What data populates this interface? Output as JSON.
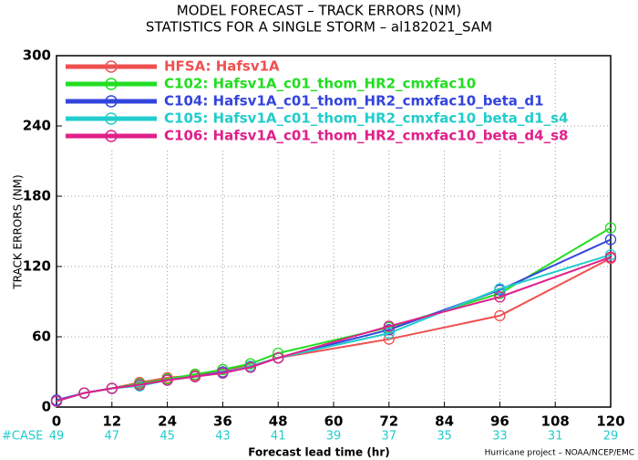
{
  "chart_data": {
    "type": "line",
    "title": "MODEL FORECAST – TRACK ERRORS (NM)",
    "subtitle": "STATISTICS FOR A SINGLE STORM – al182021_SAM",
    "x_label": "Forecast lead time (hr)",
    "y_label": "TRACK ERRORS (NM)",
    "footer": "Hurricane project – NOAA/NCEP/EMC",
    "x": [
      0,
      6,
      12,
      18,
      24,
      30,
      36,
      42,
      48,
      72,
      96,
      120
    ],
    "xlim": [
      0,
      120
    ],
    "xticks": [
      0,
      12,
      24,
      36,
      48,
      60,
      72,
      84,
      96,
      108,
      120
    ],
    "ylim": [
      0,
      300
    ],
    "yticks": [
      0,
      60,
      120,
      180,
      240,
      300
    ],
    "grid": true,
    "legend": "upper left",
    "case_label": "#CASE",
    "cases": [
      49,
      47,
      45,
      43,
      41,
      39,
      37,
      35,
      33,
      31,
      29
    ],
    "series": [
      {
        "name": "HFSA: Hafsv1A",
        "color": "#f05050",
        "values": [
          5,
          12,
          16,
          21,
          25,
          27,
          32,
          35,
          42,
          58,
          78,
          127
        ]
      },
      {
        "name": "C102: Hafsv1A_c01_thom_HR2_cmxfac10",
        "color": "#22dd22",
        "values": [
          5,
          12,
          16,
          20,
          24,
          28,
          32,
          37,
          46,
          68,
          97,
          153
        ]
      },
      {
        "name": "C104: Hafsv1A_c01_thom_HR2_cmxfac10_beta_d1",
        "color": "#3344dd",
        "values": [
          6,
          12,
          16,
          19,
          23,
          26,
          30,
          34,
          42,
          66,
          100,
          143
        ]
      },
      {
        "name": "C105: Hafsv1A_c01_thom_HR2_cmxfac10_beta_d1_s4",
        "color": "#22cccc",
        "values": [
          5,
          12,
          16,
          18,
          23,
          26,
          29,
          35,
          42,
          63,
          101,
          130
        ]
      },
      {
        "name": "C106: Hafsv1A_c01_thom_HR2_cmxfac10_beta_d4_s8",
        "color": "#e0208a",
        "values": [
          5,
          12,
          16,
          19,
          23,
          26,
          29,
          34,
          42,
          69,
          94,
          128
        ]
      }
    ]
  }
}
